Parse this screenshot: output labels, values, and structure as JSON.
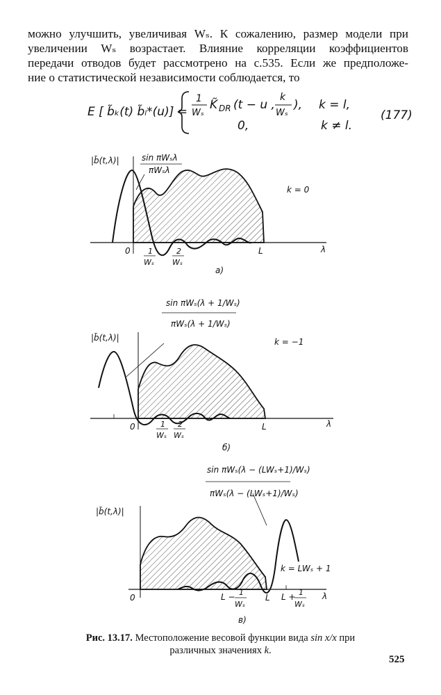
{
  "paragraph": {
    "lines": [
      "можно улучшить, увеличивая Wₛ. К сожалению, размер модели при",
      "увеличении Wₛ возрастает. Влияние корреляции коэффициентов",
      "передачи отводов будет рассмотрено на с.535. Если же предположе-",
      "ние о статистической независимости соблюдается, то"
    ]
  },
  "equation": {
    "lhs": "E [ b̃ₖ(t) b̃ₗ*(u)] =",
    "frac_num": "1",
    "frac_den": "Wₛ",
    "kernel": "K̃",
    "kernel_sub": "DR",
    "args_open": "(t − u ,",
    "args_num": "k",
    "args_den": "Wₛ",
    "args_close": "),",
    "cond1": "k = l,",
    "zero": "0,",
    "cond2": "k ≠ l.",
    "number": "(177)"
  },
  "figures": {
    "a": {
      "ylabel": "|b̃(t,λ)|",
      "func_num": "sin πWₛλ",
      "func_den": "πWₛλ",
      "k_label": "k = 0",
      "origin": "0",
      "tick1_num": "1",
      "tick1_den": "Wₛ",
      "tick2_num": "2",
      "tick2_den": "Wₛ",
      "L": "L",
      "xlabel": "λ",
      "sub": "а)"
    },
    "b": {
      "ylabel": "|b̃(t,λ)|",
      "func_num": "sin πWₛ(λ + 1/Wₛ)",
      "func_den": "πWₛ(λ + 1/Wₛ)",
      "k_label": "k = −1",
      "origin": "0",
      "tick1_num": "1",
      "tick1_den": "Wₛ",
      "tick2_num": "2",
      "tick2_den": "Wₛ",
      "L": "L",
      "xlabel": "λ",
      "sub": "б)"
    },
    "c": {
      "ylabel": "|b̃(t,λ)|",
      "func_num": "sin πWₛ(λ − (LWₛ+1)/Wₛ)",
      "func_den": "πWₛ(λ − (LWₛ+1)/Wₛ)",
      "k_label": "k = LWₛ + 1",
      "origin": "0",
      "tickm_main": "L −",
      "tickm_num": "1",
      "tickm_den": "Wₛ",
      "tickp_main": "L +",
      "tickp_num": "1",
      "tickp_den": "Wₛ",
      "L": "L",
      "xlabel": "λ",
      "sub": "в)"
    }
  },
  "caption": {
    "prefix": "Рис. 13.17.",
    "text1": " Местоположение весовой функции вида ",
    "formula": "sin x/x",
    "text2": " при",
    "line2_a": "различных значениях ",
    "line2_k": "k",
    "line2_b": "."
  },
  "page_number": "525"
}
